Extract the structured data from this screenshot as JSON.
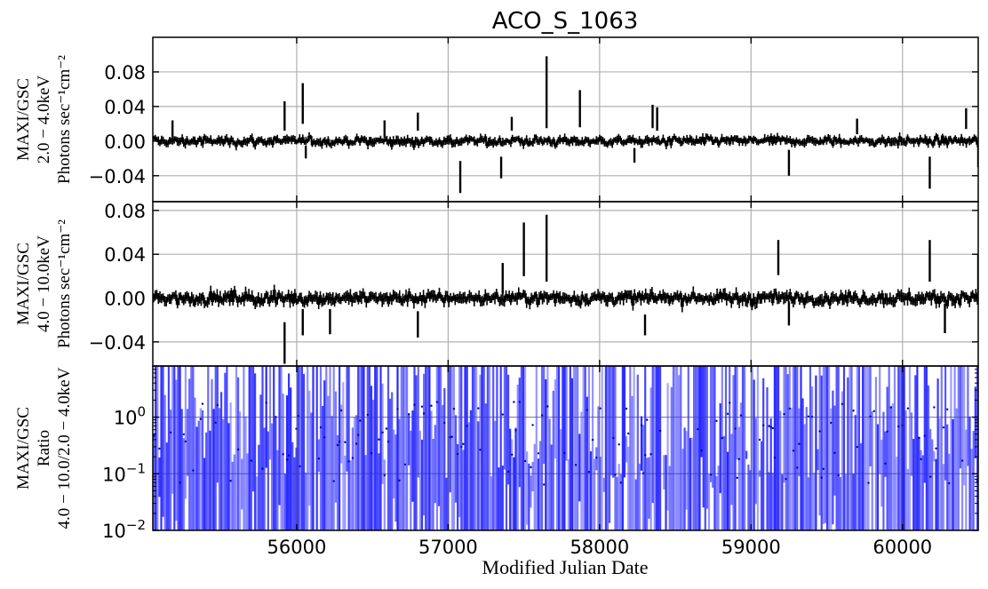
{
  "title": "ACO_S_1063",
  "xlabel": "Modified Julian Date",
  "chart_data": [
    {
      "type": "line",
      "panel": "soft",
      "ylabel_lines": [
        "MAXI/GSC",
        "2.0 − 4.0keV",
        "Photons sec⁻¹cm⁻²"
      ],
      "xlim": [
        55050,
        60500
      ],
      "ylim": [
        -0.07,
        0.12
      ],
      "xticks": [
        56000,
        57000,
        58000,
        59000,
        60000
      ],
      "yticks": [
        -0.04,
        0.0,
        0.04,
        0.08
      ],
      "ytick_labels": [
        "−0.04",
        "0.00",
        "0.04",
        "0.08"
      ],
      "grid": true,
      "series_color": "#000000",
      "noise_sigma": 0.0032,
      "spikes": [
        {
          "x": 55180,
          "lo": 0.005,
          "hi": 0.024
        },
        {
          "x": 55920,
          "lo": 0.012,
          "hi": 0.046
        },
        {
          "x": 56040,
          "lo": 0.02,
          "hi": 0.067
        },
        {
          "x": 56060,
          "lo": -0.02,
          "hi": -0.005
        },
        {
          "x": 56580,
          "lo": 0.004,
          "hi": 0.024
        },
        {
          "x": 56800,
          "lo": 0.012,
          "hi": 0.033
        },
        {
          "x": 57080,
          "lo": -0.06,
          "hi": -0.023
        },
        {
          "x": 57350,
          "lo": -0.043,
          "hi": -0.018
        },
        {
          "x": 57420,
          "lo": 0.012,
          "hi": 0.028
        },
        {
          "x": 57650,
          "lo": 0.015,
          "hi": 0.098
        },
        {
          "x": 57870,
          "lo": 0.016,
          "hi": 0.059
        },
        {
          "x": 58230,
          "lo": -0.025,
          "hi": -0.008
        },
        {
          "x": 58350,
          "lo": 0.015,
          "hi": 0.042
        },
        {
          "x": 58380,
          "lo": 0.012,
          "hi": 0.039
        },
        {
          "x": 59250,
          "lo": -0.04,
          "hi": -0.01
        },
        {
          "x": 59700,
          "lo": 0.008,
          "hi": 0.026
        },
        {
          "x": 60180,
          "lo": -0.055,
          "hi": -0.018
        },
        {
          "x": 60420,
          "lo": 0.014,
          "hi": 0.038
        },
        {
          "x": 60500,
          "lo": -0.03,
          "hi": 0.0
        }
      ]
    },
    {
      "type": "line",
      "panel": "hard",
      "ylabel_lines": [
        "MAXI/GSC",
        "4.0 − 10.0keV",
        "Photons sec⁻¹cm⁻²"
      ],
      "xlim": [
        55050,
        60500
      ],
      "ylim": [
        -0.062,
        0.088
      ],
      "xticks": [
        56000,
        57000,
        58000,
        59000,
        60000
      ],
      "yticks": [
        -0.04,
        0.0,
        0.04,
        0.08
      ],
      "ytick_labels": [
        "−0.04",
        "0.00",
        "0.04",
        "0.08"
      ],
      "grid": true,
      "series_color": "#000000",
      "noise_sigma": 0.0035,
      "spikes": [
        {
          "x": 55920,
          "lo": -0.06,
          "hi": -0.022
        },
        {
          "x": 56040,
          "lo": -0.034,
          "hi": -0.01
        },
        {
          "x": 56220,
          "lo": -0.033,
          "hi": -0.01
        },
        {
          "x": 56800,
          "lo": -0.036,
          "hi": -0.012
        },
        {
          "x": 57360,
          "lo": 0.004,
          "hi": 0.032
        },
        {
          "x": 57500,
          "lo": 0.02,
          "hi": 0.069
        },
        {
          "x": 57650,
          "lo": 0.015,
          "hi": 0.076
        },
        {
          "x": 58300,
          "lo": -0.034,
          "hi": -0.015
        },
        {
          "x": 59180,
          "lo": 0.021,
          "hi": 0.053
        },
        {
          "x": 59250,
          "lo": -0.025,
          "hi": -0.003
        },
        {
          "x": 60180,
          "lo": 0.015,
          "hi": 0.053
        },
        {
          "x": 60280,
          "lo": -0.032,
          "hi": -0.005
        },
        {
          "x": 60500,
          "lo": 0.0,
          "hi": 0.04
        }
      ]
    },
    {
      "type": "scatter",
      "panel": "ratio",
      "ylabel_lines": [
        "MAXI/GSC",
        "Ratio",
        "4.0 − 10.0/2.0 − 4.0keV"
      ],
      "xlim": [
        55050,
        60500
      ],
      "ylim": [
        0.01,
        8.0
      ],
      "yscale": "log",
      "xticks": [
        56000,
        57000,
        58000,
        59000,
        60000
      ],
      "xtick_labels": [
        "56000",
        "57000",
        "58000",
        "59000",
        "60000"
      ],
      "yticks": [
        0.01,
        0.1,
        1.0
      ],
      "ytick_bases": [
        "10",
        "10",
        "10"
      ],
      "ytick_exps": [
        "−2",
        "−1",
        "0"
      ],
      "grid": true,
      "series_color": "#0000ff"
    }
  ]
}
